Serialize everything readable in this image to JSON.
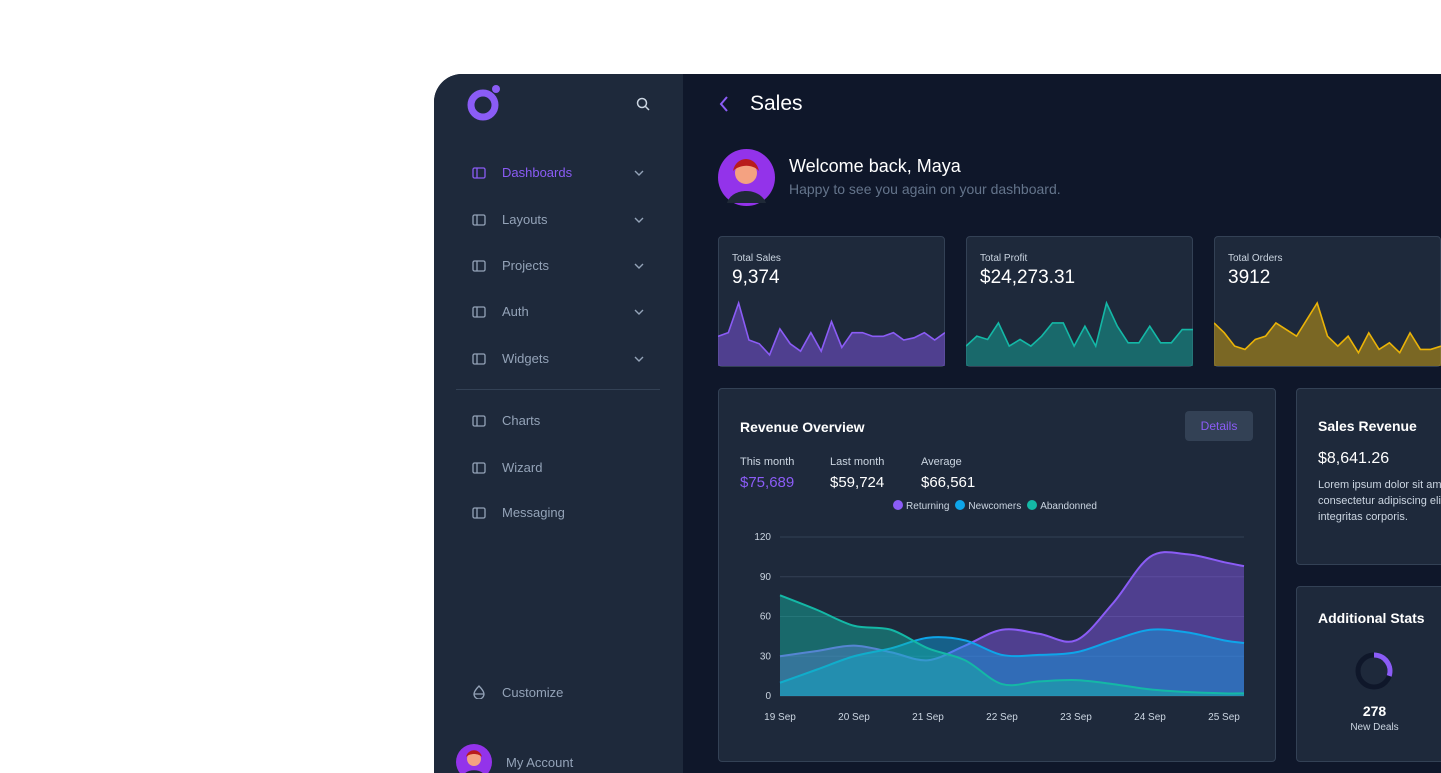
{
  "sidebar": {
    "menu": [
      "Dashboards",
      "Layouts",
      "Projects",
      "Auth",
      "Widgets"
    ],
    "links": [
      "Charts",
      "Wizard",
      "Messaging"
    ],
    "customize": "Customize",
    "account": "My Account"
  },
  "header": {
    "title": "Sales"
  },
  "welcome": {
    "title": "Welcome back, Maya",
    "subtitle": "Happy to see you again on your dashboard."
  },
  "stats": [
    {
      "label": "Total Sales",
      "value": "9,374",
      "chart_data": {
        "type": "area",
        "color": "#8b5cf6",
        "values": [
          40,
          45,
          85,
          35,
          30,
          15,
          50,
          30,
          20,
          45,
          20,
          60,
          25,
          45,
          45,
          40,
          40,
          45,
          35,
          38,
          45,
          35,
          45
        ]
      }
    },
    {
      "label": "Total Profit",
      "value": "$24,273.31",
      "chart_data": {
        "type": "area",
        "color": "#14b8a6",
        "values": [
          30,
          45,
          40,
          65,
          30,
          40,
          30,
          45,
          65,
          65,
          30,
          60,
          30,
          95,
          60,
          35,
          35,
          60,
          35,
          35,
          55,
          55
        ]
      }
    },
    {
      "label": "Total Orders",
      "value": "3912",
      "chart_data": {
        "type": "area",
        "color": "#eab308",
        "values": [
          65,
          50,
          30,
          25,
          40,
          45,
          65,
          55,
          45,
          70,
          95,
          45,
          30,
          45,
          20,
          50,
          25,
          35,
          20,
          50,
          25,
          25,
          30
        ]
      }
    }
  ],
  "revenue": {
    "title": "Revenue Overview",
    "button": "Details",
    "metrics": [
      {
        "label": "This month",
        "value": "$75,689"
      },
      {
        "label": "Last month",
        "value": "$59,724"
      },
      {
        "label": "Average",
        "value": "$66,561"
      }
    ],
    "chart_data": {
      "type": "area",
      "x": [
        19,
        19.5,
        20,
        20.5,
        21,
        21.5,
        22,
        22.5,
        23,
        23.5,
        24,
        24.5,
        25,
        25.27
      ],
      "xlim": [
        19,
        25.27
      ],
      "xticks": [
        {
          "value": 19,
          "label": "19 Sep"
        },
        {
          "value": 20,
          "label": "20 Sep"
        },
        {
          "value": 21,
          "label": "21 Sep"
        },
        {
          "value": 22,
          "label": "22 Sep"
        },
        {
          "value": 23,
          "label": "23 Sep"
        },
        {
          "value": 24,
          "label": "24 Sep"
        },
        {
          "value": 25,
          "label": "25 Sep"
        }
      ],
      "ylim": [
        0,
        120
      ],
      "yticks": [
        0,
        30,
        60,
        90,
        120
      ],
      "grid": true,
      "series": [
        {
          "name": "Returning",
          "color": "#8b5cf6",
          "values": [
            30,
            34,
            38,
            33,
            27,
            38,
            50,
            47,
            42,
            70,
            105,
            107,
            101,
            98
          ]
        },
        {
          "name": "Newcomers",
          "color": "#0ea5e9",
          "values": [
            10,
            20,
            30,
            36,
            44,
            42,
            31,
            31,
            33,
            42,
            50,
            48,
            42,
            40
          ]
        },
        {
          "name": "Abandonned",
          "color": "#14b8a6",
          "values": [
            76,
            65,
            53,
            50,
            36,
            27,
            9,
            11,
            12,
            9,
            5,
            3,
            2,
            2
          ]
        }
      ]
    }
  },
  "sales_revenue": {
    "title": "Sales Revenue",
    "value": "$8,641.26",
    "text": [
      "Lorem ipsum dolor sit amet,",
      "consectetur adipiscing elit,",
      "integritas corporis."
    ]
  },
  "additional": {
    "title": "Additional Stats",
    "value": 278,
    "label": "New Deals",
    "progress": 30
  }
}
